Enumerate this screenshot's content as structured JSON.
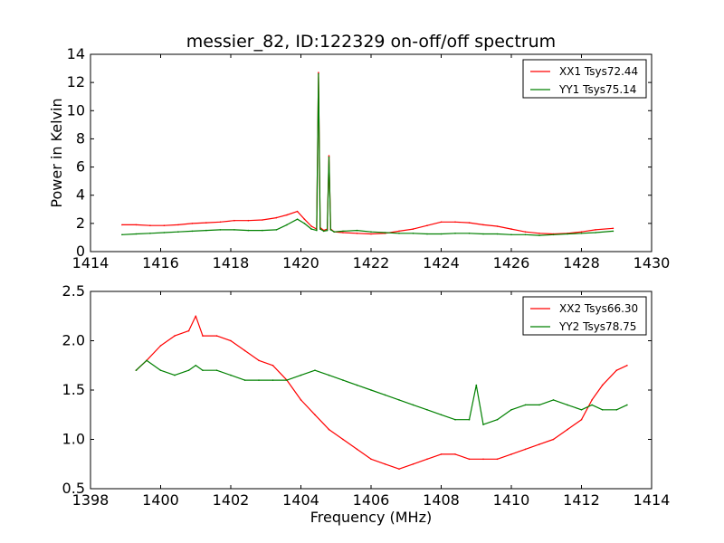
{
  "chart_data": [
    {
      "type": "line",
      "title": "messier_82, ID:122329 on-off/off spectrum",
      "xlabel": "",
      "ylabel": "Power in Kelvin",
      "xlim": [
        1414,
        1430
      ],
      "ylim": [
        0,
        14
      ],
      "xticks": [
        1414,
        1416,
        1418,
        1420,
        1422,
        1424,
        1426,
        1428,
        1430
      ],
      "yticks": [
        0,
        2,
        4,
        6,
        8,
        10,
        12,
        14
      ],
      "legend_position": "top-right",
      "series": [
        {
          "name": "XX1 Tsys72.44",
          "color": "#ff0000",
          "x": [
            1414.9,
            1415.3,
            1415.7,
            1416.1,
            1416.5,
            1416.9,
            1417.3,
            1417.7,
            1418.1,
            1418.5,
            1418.9,
            1419.3,
            1419.6,
            1419.9,
            1420.1,
            1420.3,
            1420.45,
            1420.5,
            1420.55,
            1420.65,
            1420.75,
            1420.8,
            1420.85,
            1420.95,
            1421.2,
            1421.6,
            1422.0,
            1422.4,
            1422.8,
            1423.2,
            1423.6,
            1424.0,
            1424.4,
            1424.8,
            1425.2,
            1425.6,
            1426.0,
            1426.4,
            1426.8,
            1427.2,
            1427.6,
            1428.0,
            1428.4,
            1428.9
          ],
          "values": [
            1.9,
            1.9,
            1.85,
            1.85,
            1.9,
            2.0,
            2.05,
            2.1,
            2.2,
            2.2,
            2.25,
            2.4,
            2.6,
            2.85,
            2.3,
            1.8,
            1.6,
            12.7,
            1.7,
            1.5,
            1.6,
            6.8,
            1.6,
            1.4,
            1.35,
            1.3,
            1.25,
            1.3,
            1.45,
            1.6,
            1.85,
            2.1,
            2.1,
            2.05,
            1.9,
            1.8,
            1.6,
            1.4,
            1.3,
            1.25,
            1.3,
            1.4,
            1.55,
            1.65
          ]
        },
        {
          "name": "YY1 Tsys75.14",
          "color": "#008000",
          "x": [
            1414.9,
            1415.3,
            1415.7,
            1416.1,
            1416.5,
            1416.9,
            1417.3,
            1417.7,
            1418.1,
            1418.5,
            1418.9,
            1419.3,
            1419.6,
            1419.9,
            1420.1,
            1420.3,
            1420.45,
            1420.5,
            1420.55,
            1420.65,
            1420.75,
            1420.8,
            1420.85,
            1420.95,
            1421.2,
            1421.6,
            1422.0,
            1422.4,
            1422.8,
            1423.2,
            1423.6,
            1424.0,
            1424.4,
            1424.8,
            1425.2,
            1425.6,
            1426.0,
            1426.4,
            1426.8,
            1427.2,
            1427.6,
            1428.0,
            1428.4,
            1428.9
          ],
          "values": [
            1.2,
            1.25,
            1.3,
            1.35,
            1.4,
            1.45,
            1.5,
            1.55,
            1.55,
            1.5,
            1.5,
            1.55,
            1.9,
            2.3,
            2.0,
            1.6,
            1.5,
            12.6,
            1.6,
            1.45,
            1.5,
            6.7,
            1.55,
            1.4,
            1.45,
            1.5,
            1.4,
            1.35,
            1.3,
            1.3,
            1.25,
            1.25,
            1.3,
            1.3,
            1.25,
            1.25,
            1.2,
            1.2,
            1.15,
            1.2,
            1.25,
            1.3,
            1.35,
            1.45
          ]
        }
      ]
    },
    {
      "type": "line",
      "title": "",
      "xlabel": "Frequency (MHz)",
      "ylabel": "",
      "xlim": [
        1398,
        1414
      ],
      "ylim": [
        0.5,
        2.5
      ],
      "xticks": [
        1398,
        1400,
        1402,
        1404,
        1406,
        1408,
        1410,
        1412,
        1414
      ],
      "yticks": [
        0.5,
        1.0,
        1.5,
        2.0,
        2.5
      ],
      "legend_position": "top-right",
      "series": [
        {
          "name": "XX2 Tsys66.30",
          "color": "#ff0000",
          "x": [
            1399.3,
            1399.6,
            1400.0,
            1400.4,
            1400.8,
            1401.0,
            1401.2,
            1401.6,
            1402.0,
            1402.4,
            1402.8,
            1403.2,
            1403.6,
            1404.0,
            1404.4,
            1404.8,
            1405.2,
            1405.6,
            1406.0,
            1406.4,
            1406.8,
            1407.2,
            1407.6,
            1408.0,
            1408.4,
            1408.8,
            1409.2,
            1409.6,
            1410.0,
            1410.4,
            1410.8,
            1411.2,
            1411.6,
            1412.0,
            1412.3,
            1412.6,
            1413.0,
            1413.3
          ],
          "values": [
            1.7,
            1.8,
            1.95,
            2.05,
            2.1,
            2.25,
            2.05,
            2.05,
            2.0,
            1.9,
            1.8,
            1.75,
            1.6,
            1.4,
            1.25,
            1.1,
            1.0,
            0.9,
            0.8,
            0.75,
            0.7,
            0.75,
            0.8,
            0.85,
            0.85,
            0.8,
            0.8,
            0.8,
            0.85,
            0.9,
            0.95,
            1.0,
            1.1,
            1.2,
            1.4,
            1.55,
            1.7,
            1.75
          ]
        },
        {
          "name": "YY2 Tsys78.75",
          "color": "#008000",
          "x": [
            1399.3,
            1399.6,
            1400.0,
            1400.4,
            1400.8,
            1401.0,
            1401.2,
            1401.6,
            1402.0,
            1402.4,
            1402.8,
            1403.2,
            1403.6,
            1404.0,
            1404.4,
            1404.8,
            1405.2,
            1405.6,
            1406.0,
            1406.4,
            1406.8,
            1407.2,
            1407.6,
            1408.0,
            1408.4,
            1408.8,
            1409.0,
            1409.2,
            1409.6,
            1410.0,
            1410.4,
            1410.8,
            1411.2,
            1411.6,
            1412.0,
            1412.3,
            1412.6,
            1413.0,
            1413.3
          ],
          "values": [
            1.7,
            1.8,
            1.7,
            1.65,
            1.7,
            1.75,
            1.7,
            1.7,
            1.65,
            1.6,
            1.6,
            1.6,
            1.6,
            1.65,
            1.7,
            1.65,
            1.6,
            1.55,
            1.5,
            1.45,
            1.4,
            1.35,
            1.3,
            1.25,
            1.2,
            1.2,
            1.55,
            1.15,
            1.2,
            1.3,
            1.35,
            1.35,
            1.4,
            1.35,
            1.3,
            1.35,
            1.3,
            1.3,
            1.35
          ]
        }
      ]
    }
  ]
}
